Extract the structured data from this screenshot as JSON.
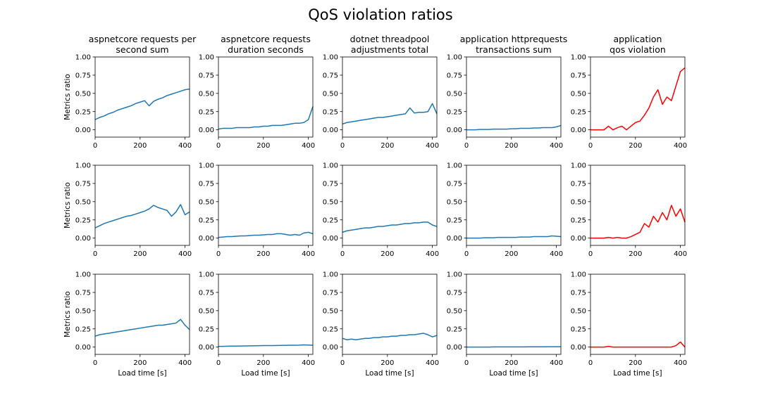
{
  "figure": {
    "title": "QoS violation ratios",
    "ylabel": "Metrics ratio",
    "xlabel": "Load time [s]"
  },
  "columns": [
    {
      "title_lines": [
        "aspnetcore requests per",
        "second sum"
      ]
    },
    {
      "title_lines": [
        "aspnetcore requests",
        "duration seconds"
      ]
    },
    {
      "title_lines": [
        "dotnet threadpool",
        "adjustments total"
      ]
    },
    {
      "title_lines": [
        "application httprequests",
        "transactions sum"
      ]
    },
    {
      "title_lines": [
        "application",
        "qos violation"
      ]
    }
  ],
  "colors": {
    "metric": "#1f77b4",
    "violation": "#ff0000"
  },
  "chart_data": [
    {
      "type": "line",
      "row": 0,
      "col": 0,
      "color": "#1f77b4",
      "xlim": [
        0,
        420
      ],
      "ylim": [
        -0.1,
        1.0
      ],
      "xticks": [
        0,
        200,
        400
      ],
      "yticks": [
        0.0,
        0.25,
        0.5,
        0.75,
        1.0
      ],
      "ytick_labels": [
        "0.00",
        "0.25",
        "0.50",
        "0.75",
        "1.00"
      ],
      "x": [
        0,
        20,
        40,
        60,
        80,
        100,
        120,
        140,
        160,
        180,
        200,
        220,
        240,
        260,
        280,
        300,
        320,
        340,
        360,
        380,
        400,
        420
      ],
      "y": [
        0.14,
        0.17,
        0.19,
        0.22,
        0.24,
        0.27,
        0.29,
        0.31,
        0.33,
        0.36,
        0.38,
        0.4,
        0.33,
        0.39,
        0.42,
        0.44,
        0.47,
        0.49,
        0.51,
        0.53,
        0.55,
        0.56
      ]
    },
    {
      "type": "line",
      "row": 0,
      "col": 1,
      "color": "#1f77b4",
      "xlim": [
        0,
        420
      ],
      "ylim": [
        -0.1,
        1.0
      ],
      "xticks": [
        0,
        200,
        400
      ],
      "yticks": [
        0.0,
        0.25,
        0.5,
        0.75,
        1.0
      ],
      "ytick_labels": [
        "0.00",
        "0.25",
        "0.50",
        "0.75",
        "1.00"
      ],
      "x": [
        0,
        20,
        40,
        60,
        80,
        100,
        120,
        140,
        160,
        180,
        200,
        220,
        240,
        260,
        280,
        300,
        320,
        340,
        360,
        380,
        400,
        420
      ],
      "y": [
        0.01,
        0.02,
        0.02,
        0.02,
        0.03,
        0.03,
        0.03,
        0.03,
        0.04,
        0.04,
        0.05,
        0.05,
        0.06,
        0.06,
        0.06,
        0.07,
        0.08,
        0.09,
        0.09,
        0.1,
        0.14,
        0.32
      ]
    },
    {
      "type": "line",
      "row": 0,
      "col": 2,
      "color": "#1f77b4",
      "xlim": [
        0,
        420
      ],
      "ylim": [
        -0.1,
        1.0
      ],
      "xticks": [
        0,
        200,
        400
      ],
      "yticks": [
        0.0,
        0.25,
        0.5,
        0.75,
        1.0
      ],
      "ytick_labels": [
        "0.00",
        "0.25",
        "0.50",
        "0.75",
        "1.00"
      ],
      "x": [
        0,
        20,
        40,
        60,
        80,
        100,
        120,
        140,
        160,
        180,
        200,
        220,
        240,
        260,
        280,
        300,
        320,
        340,
        360,
        380,
        400,
        420
      ],
      "y": [
        0.08,
        0.1,
        0.11,
        0.12,
        0.13,
        0.14,
        0.15,
        0.16,
        0.17,
        0.17,
        0.18,
        0.19,
        0.2,
        0.21,
        0.22,
        0.3,
        0.23,
        0.24,
        0.24,
        0.25,
        0.36,
        0.22
      ]
    },
    {
      "type": "line",
      "row": 0,
      "col": 3,
      "color": "#1f77b4",
      "xlim": [
        0,
        420
      ],
      "ylim": [
        -0.1,
        1.0
      ],
      "xticks": [
        0,
        200,
        400
      ],
      "yticks": [
        0.0,
        0.25,
        0.5,
        0.75,
        1.0
      ],
      "ytick_labels": [
        "0.00",
        "0.25",
        "0.50",
        "0.75",
        "1.00"
      ],
      "x": [
        0,
        20,
        40,
        60,
        80,
        100,
        120,
        140,
        160,
        180,
        200,
        220,
        240,
        260,
        280,
        300,
        320,
        340,
        360,
        380,
        400,
        420
      ],
      "y": [
        0.0,
        0.0,
        0.0,
        0.005,
        0.005,
        0.005,
        0.01,
        0.01,
        0.01,
        0.01,
        0.015,
        0.015,
        0.02,
        0.02,
        0.02,
        0.025,
        0.025,
        0.03,
        0.03,
        0.03,
        0.04,
        0.06
      ]
    },
    {
      "type": "line",
      "row": 0,
      "col": 4,
      "color": "#ff0000",
      "xlim": [
        0,
        420
      ],
      "ylim": [
        -0.1,
        1.0
      ],
      "xticks": [
        0,
        200,
        400
      ],
      "yticks": [
        0.0,
        0.25,
        0.5,
        0.75,
        1.0
      ],
      "ytick_labels": [
        "0.00",
        "0.25",
        "0.50",
        "0.75",
        "1.00"
      ],
      "x": [
        0,
        20,
        40,
        60,
        80,
        100,
        120,
        140,
        160,
        180,
        200,
        220,
        240,
        260,
        280,
        300,
        320,
        340,
        360,
        380,
        400,
        420
      ],
      "y": [
        0.0,
        0.0,
        0.0,
        0.0,
        0.05,
        0.0,
        0.03,
        0.05,
        0.0,
        0.05,
        0.1,
        0.12,
        0.2,
        0.3,
        0.45,
        0.55,
        0.35,
        0.45,
        0.4,
        0.6,
        0.8,
        0.85
      ]
    },
    {
      "type": "line",
      "row": 1,
      "col": 0,
      "color": "#1f77b4",
      "xlim": [
        0,
        420
      ],
      "ylim": [
        -0.1,
        1.0
      ],
      "xticks": [
        0,
        200,
        400
      ],
      "yticks": [
        0.0,
        0.25,
        0.5,
        0.75,
        1.0
      ],
      "ytick_labels": [
        "0.00",
        "0.25",
        "0.50",
        "0.75",
        "1.00"
      ],
      "x": [
        0,
        20,
        40,
        60,
        80,
        100,
        120,
        140,
        160,
        180,
        200,
        220,
        240,
        260,
        280,
        300,
        320,
        340,
        360,
        380,
        400,
        420
      ],
      "y": [
        0.14,
        0.17,
        0.2,
        0.22,
        0.24,
        0.26,
        0.28,
        0.3,
        0.31,
        0.33,
        0.35,
        0.37,
        0.4,
        0.45,
        0.42,
        0.4,
        0.38,
        0.3,
        0.36,
        0.46,
        0.32,
        0.36
      ]
    },
    {
      "type": "line",
      "row": 1,
      "col": 1,
      "color": "#1f77b4",
      "xlim": [
        0,
        420
      ],
      "ylim": [
        -0.1,
        1.0
      ],
      "xticks": [
        0,
        200,
        400
      ],
      "yticks": [
        0.0,
        0.25,
        0.5,
        0.75,
        1.0
      ],
      "ytick_labels": [
        "0.00",
        "0.25",
        "0.50",
        "0.75",
        "1.00"
      ],
      "x": [
        0,
        20,
        40,
        60,
        80,
        100,
        120,
        140,
        160,
        180,
        200,
        220,
        240,
        260,
        280,
        300,
        320,
        340,
        360,
        380,
        400,
        420
      ],
      "y": [
        0.01,
        0.015,
        0.02,
        0.02,
        0.025,
        0.03,
        0.03,
        0.035,
        0.04,
        0.04,
        0.045,
        0.05,
        0.05,
        0.06,
        0.06,
        0.05,
        0.04,
        0.05,
        0.04,
        0.07,
        0.08,
        0.06
      ]
    },
    {
      "type": "line",
      "row": 1,
      "col": 2,
      "color": "#1f77b4",
      "xlim": [
        0,
        420
      ],
      "ylim": [
        -0.1,
        1.0
      ],
      "xticks": [
        0,
        200,
        400
      ],
      "yticks": [
        0.0,
        0.25,
        0.5,
        0.75,
        1.0
      ],
      "ytick_labels": [
        "0.00",
        "0.25",
        "0.50",
        "0.75",
        "1.00"
      ],
      "x": [
        0,
        20,
        40,
        60,
        80,
        100,
        120,
        140,
        160,
        180,
        200,
        220,
        240,
        260,
        280,
        300,
        320,
        340,
        360,
        380,
        400,
        420
      ],
      "y": [
        0.08,
        0.1,
        0.11,
        0.12,
        0.13,
        0.14,
        0.14,
        0.15,
        0.16,
        0.16,
        0.17,
        0.18,
        0.18,
        0.19,
        0.2,
        0.2,
        0.21,
        0.21,
        0.22,
        0.22,
        0.18,
        0.16
      ]
    },
    {
      "type": "line",
      "row": 1,
      "col": 3,
      "color": "#1f77b4",
      "xlim": [
        0,
        420
      ],
      "ylim": [
        -0.1,
        1.0
      ],
      "xticks": [
        0,
        200,
        400
      ],
      "yticks": [
        0.0,
        0.25,
        0.5,
        0.75,
        1.0
      ],
      "ytick_labels": [
        "0.00",
        "0.25",
        "0.50",
        "0.75",
        "1.00"
      ],
      "x": [
        0,
        20,
        40,
        60,
        80,
        100,
        120,
        140,
        160,
        180,
        200,
        220,
        240,
        260,
        280,
        300,
        320,
        340,
        360,
        380,
        400,
        420
      ],
      "y": [
        0.0,
        0.0,
        0.0,
        0.0,
        0.005,
        0.005,
        0.005,
        0.01,
        0.01,
        0.01,
        0.01,
        0.01,
        0.015,
        0.015,
        0.015,
        0.02,
        0.02,
        0.02,
        0.02,
        0.03,
        0.025,
        0.02
      ]
    },
    {
      "type": "line",
      "row": 1,
      "col": 4,
      "color": "#ff0000",
      "xlim": [
        0,
        420
      ],
      "ylim": [
        -0.1,
        1.0
      ],
      "xticks": [
        0,
        200,
        400
      ],
      "yticks": [
        0.0,
        0.25,
        0.5,
        0.75,
        1.0
      ],
      "ytick_labels": [
        "0.00",
        "0.25",
        "0.50",
        "0.75",
        "1.00"
      ],
      "x": [
        0,
        20,
        40,
        60,
        80,
        100,
        120,
        140,
        160,
        180,
        200,
        220,
        240,
        260,
        280,
        300,
        320,
        340,
        360,
        380,
        400,
        420
      ],
      "y": [
        0.0,
        0.0,
        0.0,
        0.0,
        0.01,
        0.0,
        0.01,
        0.0,
        0.0,
        0.02,
        0.05,
        0.08,
        0.2,
        0.15,
        0.3,
        0.22,
        0.35,
        0.25,
        0.45,
        0.3,
        0.4,
        0.22
      ]
    },
    {
      "type": "line",
      "row": 2,
      "col": 0,
      "color": "#1f77b4",
      "xlim": [
        0,
        420
      ],
      "ylim": [
        -0.1,
        1.0
      ],
      "xticks": [
        0,
        200,
        400
      ],
      "yticks": [
        0.0,
        0.25,
        0.5,
        0.75,
        1.0
      ],
      "ytick_labels": [
        "0.00",
        "0.25",
        "0.50",
        "0.75",
        "1.00"
      ],
      "x": [
        0,
        20,
        40,
        60,
        80,
        100,
        120,
        140,
        160,
        180,
        200,
        220,
        240,
        260,
        280,
        300,
        320,
        340,
        360,
        380,
        400,
        420
      ],
      "y": [
        0.15,
        0.17,
        0.18,
        0.19,
        0.2,
        0.21,
        0.22,
        0.23,
        0.24,
        0.25,
        0.26,
        0.27,
        0.28,
        0.29,
        0.3,
        0.3,
        0.31,
        0.32,
        0.33,
        0.38,
        0.3,
        0.24
      ]
    },
    {
      "type": "line",
      "row": 2,
      "col": 1,
      "color": "#1f77b4",
      "xlim": [
        0,
        420
      ],
      "ylim": [
        -0.1,
        1.0
      ],
      "xticks": [
        0,
        200,
        400
      ],
      "yticks": [
        0.0,
        0.25,
        0.5,
        0.75,
        1.0
      ],
      "ytick_labels": [
        "0.00",
        "0.25",
        "0.50",
        "0.75",
        "1.00"
      ],
      "x": [
        0,
        20,
        40,
        60,
        80,
        100,
        120,
        140,
        160,
        180,
        200,
        220,
        240,
        260,
        280,
        300,
        320,
        340,
        360,
        380,
        400,
        420
      ],
      "y": [
        0.01,
        0.01,
        0.012,
        0.013,
        0.014,
        0.015,
        0.016,
        0.017,
        0.018,
        0.019,
        0.02,
        0.02,
        0.021,
        0.022,
        0.023,
        0.024,
        0.025,
        0.026,
        0.027,
        0.03,
        0.028,
        0.026
      ]
    },
    {
      "type": "line",
      "row": 2,
      "col": 2,
      "color": "#1f77b4",
      "xlim": [
        0,
        420
      ],
      "ylim": [
        -0.1,
        1.0
      ],
      "xticks": [
        0,
        200,
        400
      ],
      "yticks": [
        0.0,
        0.25,
        0.5,
        0.75,
        1.0
      ],
      "ytick_labels": [
        "0.00",
        "0.25",
        "0.50",
        "0.75",
        "1.00"
      ],
      "x": [
        0,
        20,
        40,
        60,
        80,
        100,
        120,
        140,
        160,
        180,
        200,
        220,
        240,
        260,
        280,
        300,
        320,
        340,
        360,
        380,
        400,
        420
      ],
      "y": [
        0.12,
        0.1,
        0.11,
        0.1,
        0.11,
        0.12,
        0.12,
        0.13,
        0.13,
        0.14,
        0.14,
        0.15,
        0.15,
        0.16,
        0.16,
        0.17,
        0.17,
        0.18,
        0.19,
        0.17,
        0.14,
        0.16
      ]
    },
    {
      "type": "line",
      "row": 2,
      "col": 3,
      "color": "#1f77b4",
      "xlim": [
        0,
        420
      ],
      "ylim": [
        -0.1,
        1.0
      ],
      "xticks": [
        0,
        200,
        400
      ],
      "yticks": [
        0.0,
        0.25,
        0.5,
        0.75,
        1.0
      ],
      "ytick_labels": [
        "0.00",
        "0.25",
        "0.50",
        "0.75",
        "1.00"
      ],
      "x": [
        0,
        20,
        40,
        60,
        80,
        100,
        120,
        140,
        160,
        180,
        200,
        220,
        240,
        260,
        280,
        300,
        320,
        340,
        360,
        380,
        400,
        420
      ],
      "y": [
        0.0,
        0.0,
        0.0,
        0.0,
        0.0,
        0.0,
        0.002,
        0.002,
        0.002,
        0.002,
        0.003,
        0.003,
        0.003,
        0.003,
        0.004,
        0.004,
        0.004,
        0.004,
        0.005,
        0.005,
        0.005,
        0.005
      ]
    },
    {
      "type": "line",
      "row": 2,
      "col": 4,
      "color": "#ff0000",
      "xlim": [
        0,
        420
      ],
      "ylim": [
        -0.1,
        1.0
      ],
      "xticks": [
        0,
        200,
        400
      ],
      "yticks": [
        0.0,
        0.25,
        0.5,
        0.75,
        1.0
      ],
      "ytick_labels": [
        "0.00",
        "0.25",
        "0.50",
        "0.75",
        "1.00"
      ],
      "x": [
        0,
        20,
        40,
        60,
        80,
        100,
        120,
        140,
        160,
        180,
        200,
        220,
        240,
        260,
        280,
        300,
        320,
        340,
        360,
        380,
        400,
        420
      ],
      "y": [
        0.0,
        0.0,
        0.0,
        0.0,
        0.01,
        0.0,
        0.0,
        0.0,
        0.0,
        0.0,
        0.0,
        0.0,
        0.0,
        0.0,
        0.0,
        0.0,
        0.0,
        0.0,
        0.0,
        0.02,
        0.07,
        0.0
      ]
    }
  ]
}
